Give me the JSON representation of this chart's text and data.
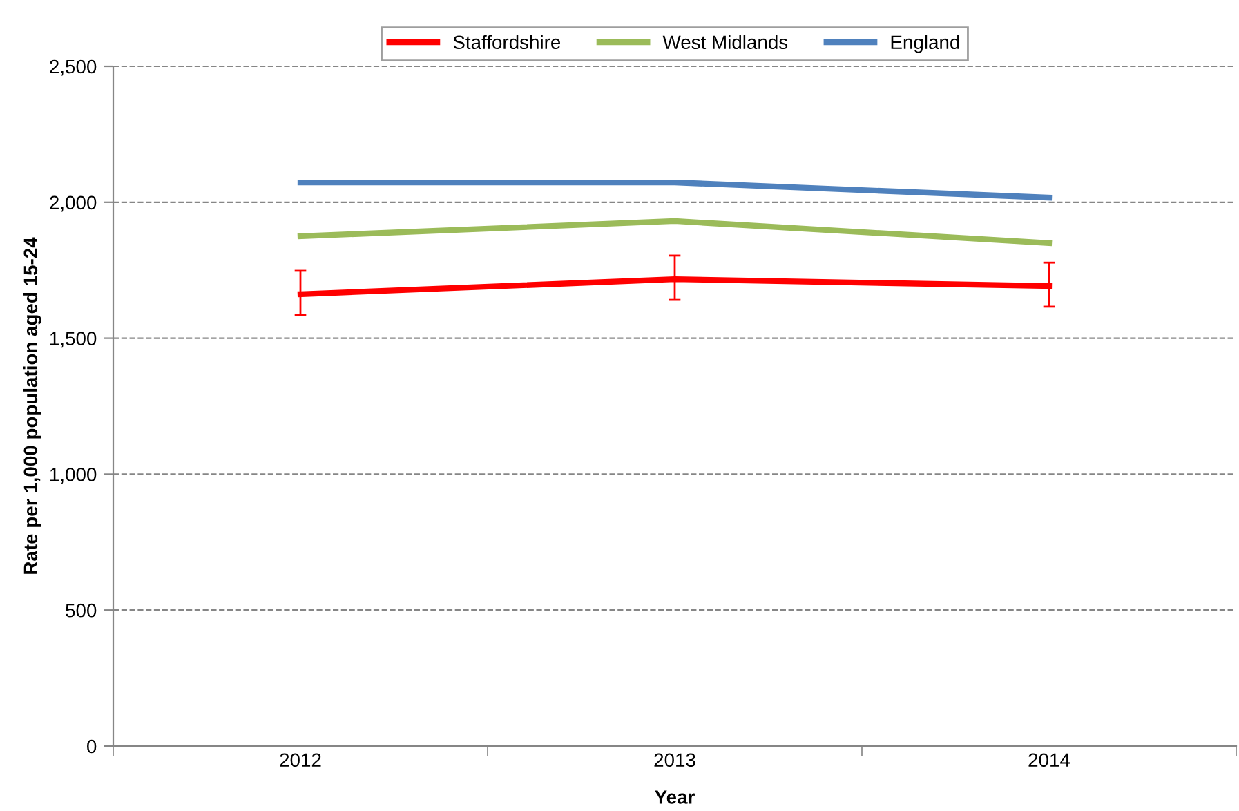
{
  "chart_data": {
    "type": "line",
    "xlabel": "Year",
    "ylabel": "Rate per 1,000 population aged 15-24",
    "categories": [
      "2012",
      "2013",
      "2014"
    ],
    "series": [
      {
        "name": "Staffordshire",
        "color": "#ff0000",
        "values": [
          1662,
          1717,
          1692
        ],
        "errors": [
          [
            1585,
            1748
          ],
          [
            1641,
            1804
          ],
          [
            1616,
            1778
          ]
        ]
      },
      {
        "name": "West Midlands",
        "color": "#9bbb59",
        "values": [
          1875,
          1931,
          1850
        ]
      },
      {
        "name": "England",
        "color": "#4f81bd",
        "values": [
          2073,
          2073,
          2017
        ]
      }
    ],
    "ylim": [
      0,
      2500
    ],
    "yticks": [
      {
        "value": 0,
        "label": "0"
      },
      {
        "value": 500,
        "label": "500"
      },
      {
        "value": 1000,
        "label": "1,000"
      },
      {
        "value": 1500,
        "label": "1,500"
      },
      {
        "value": 2000,
        "label": "2,000"
      },
      {
        "value": 2500,
        "label": "2,500"
      }
    ],
    "grid": "y",
    "legend": "top",
    "marker": "none",
    "line_style": "solid"
  }
}
